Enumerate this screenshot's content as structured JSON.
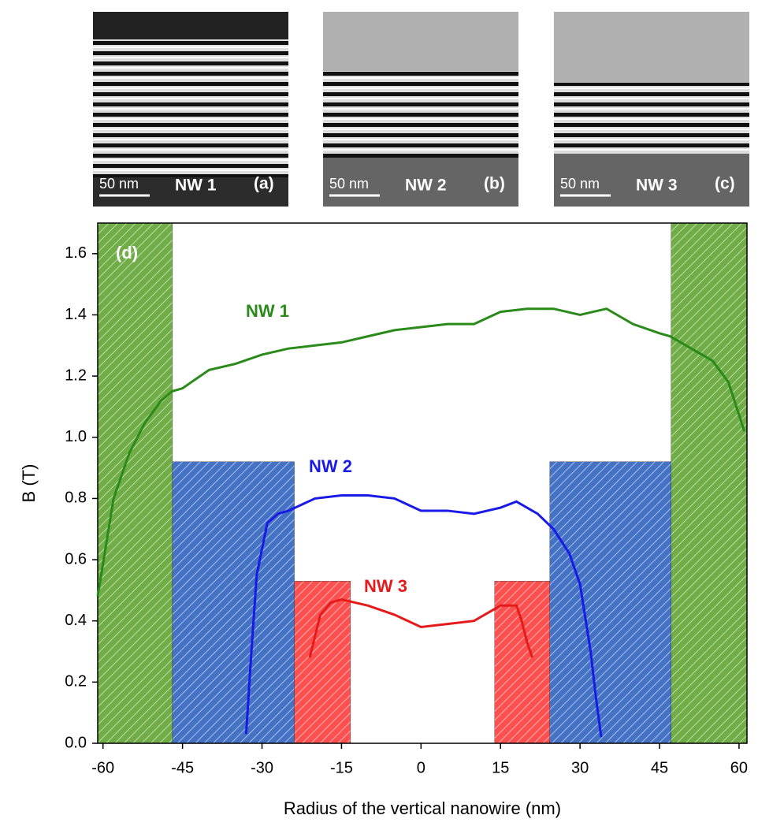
{
  "panels": [
    {
      "scale": "50 nm",
      "name": "NW 1",
      "label": "(a)"
    },
    {
      "scale": "50 nm",
      "name": "NW 2",
      "label": "(b)"
    },
    {
      "scale": "50 nm",
      "name": "NW 3",
      "label": "(c)"
    }
  ],
  "chart_data": {
    "type": "line",
    "panel_label": "(d)",
    "x_label": "Radius of the vertical nanowire (nm)",
    "y_label": "B (T)",
    "xlim": [
      -61,
      61.5
    ],
    "ylim": [
      0,
      1.7
    ],
    "xticks": [
      -60,
      -45,
      -30,
      -15,
      0,
      15,
      30,
      45,
      60
    ],
    "yticks": [
      {
        "value": 0,
        "label": "0.0"
      },
      0.2,
      0.4,
      0.6,
      0.8,
      {
        "value": 1,
        "label": "1.0"
      },
      1.2,
      1.4,
      1.6
    ],
    "regions": [
      {
        "color": "#70ad47",
        "xlim": [
          -61,
          -46.9
        ],
        "top": 1.7
      },
      {
        "color": "#70ad47",
        "xlim": [
          47.2,
          61.5
        ],
        "top": 1.7
      },
      {
        "color": "#4472c4",
        "xlim": [
          -46.9,
          -23.9
        ],
        "top": 0.92
      },
      {
        "color": "#4472c4",
        "xlim": [
          24.3,
          47.2
        ],
        "top": 0.92
      },
      {
        "color": "#ff5050",
        "xlim": [
          -23.9,
          -13.3
        ],
        "top": 0.53
      },
      {
        "color": "#ff5050",
        "xlim": [
          13.9,
          24.3
        ],
        "top": 0.53
      }
    ],
    "series": [
      {
        "name": "NW 1",
        "color": "#2a8a1a",
        "x": [
          -61,
          -58,
          -55,
          -52,
          -49,
          -47,
          -45,
          -40,
          -35,
          -30,
          -25,
          -20,
          -15,
          -10,
          -5,
          0,
          5,
          10,
          15,
          20,
          25,
          30,
          35,
          40,
          45,
          47,
          50,
          55,
          58,
          61
        ],
        "values": [
          0.48,
          0.8,
          0.95,
          1.05,
          1.12,
          1.15,
          1.16,
          1.22,
          1.24,
          1.27,
          1.29,
          1.3,
          1.31,
          1.33,
          1.35,
          1.36,
          1.37,
          1.37,
          1.41,
          1.42,
          1.42,
          1.4,
          1.42,
          1.37,
          1.34,
          1.33,
          1.3,
          1.25,
          1.18,
          1.02
        ]
      },
      {
        "name": "NW 2",
        "color": "#1a1ae6",
        "x": [
          -33,
          -32,
          -31,
          -29,
          -27,
          -25,
          -20,
          -15,
          -10,
          -5,
          0,
          5,
          10,
          15,
          18,
          22,
          25,
          28,
          30,
          32,
          33,
          34
        ],
        "values": [
          0.03,
          0.3,
          0.55,
          0.72,
          0.75,
          0.76,
          0.8,
          0.81,
          0.81,
          0.8,
          0.76,
          0.76,
          0.75,
          0.77,
          0.79,
          0.75,
          0.7,
          0.62,
          0.52,
          0.3,
          0.15,
          0.02
        ]
      },
      {
        "name": "NW 3",
        "color": "#e61a1a",
        "x": [
          -21,
          -19,
          -17,
          -15,
          -10,
          -5,
          0,
          5,
          10,
          15,
          18,
          19,
          20,
          21
        ],
        "values": [
          0.28,
          0.42,
          0.46,
          0.47,
          0.45,
          0.42,
          0.38,
          0.39,
          0.4,
          0.45,
          0.45,
          0.4,
          0.33,
          0.28
        ]
      }
    ]
  }
}
